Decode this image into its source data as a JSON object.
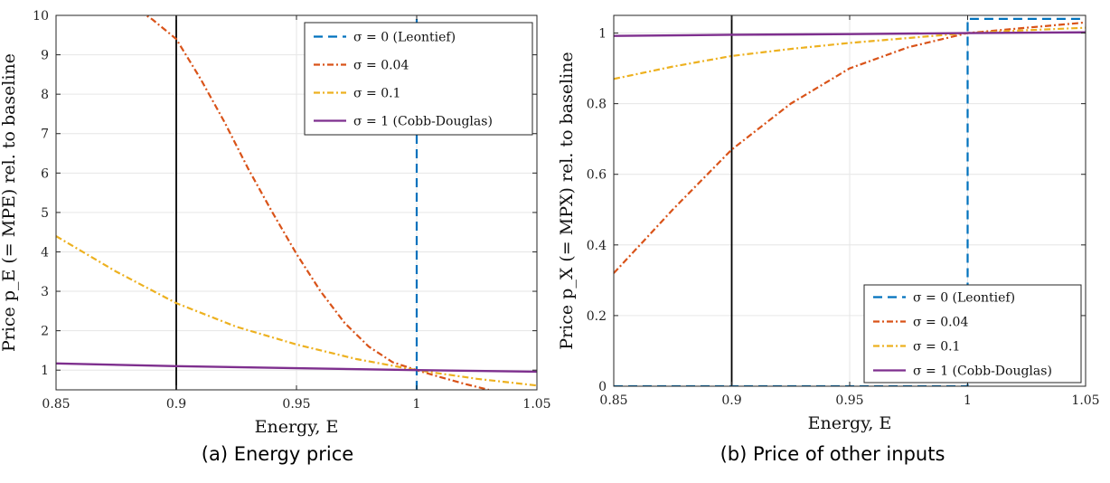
{
  "chart_data": [
    {
      "type": "line",
      "caption": "(a) Energy price",
      "xlabel": "Energy, E",
      "ylabel": "Price p_E (= MPE) rel. to baseline",
      "xlim": [
        0.85,
        1.05
      ],
      "ylim": [
        0.5,
        10
      ],
      "xticks": [
        "0.85",
        "0.9",
        "0.95",
        "1",
        "1.05"
      ],
      "yticks": [
        "1",
        "2",
        "3",
        "4",
        "5",
        "6",
        "7",
        "8",
        "9",
        "10"
      ],
      "grid": true,
      "legend_position": "top-right",
      "vertical_line": 0.9,
      "series": [
        {
          "name": "σ = 0 (Leontief)",
          "color": "#0072BD",
          "style": "dashed",
          "x": [
            1.0,
            1.0
          ],
          "y": [
            0.5,
            10
          ]
        },
        {
          "name": "σ = 0.04",
          "color": "#D95319",
          "style": "dashdot",
          "x": [
            0.88,
            0.89,
            0.9,
            0.91,
            0.92,
            0.93,
            0.94,
            0.95,
            0.96,
            0.97,
            0.98,
            0.99,
            1.0,
            1.01,
            1.02,
            1.03
          ],
          "y": [
            10.3,
            9.9,
            9.4,
            8.4,
            7.3,
            6.1,
            5.0,
            3.95,
            3.0,
            2.2,
            1.6,
            1.2,
            1.0,
            0.82,
            0.65,
            0.5
          ]
        },
        {
          "name": "σ = 0.1",
          "color": "#EDB120",
          "style": "dashdot",
          "x": [
            0.85,
            0.875,
            0.9,
            0.925,
            0.95,
            0.975,
            1.0,
            1.025,
            1.05
          ],
          "y": [
            4.4,
            3.5,
            2.7,
            2.1,
            1.65,
            1.28,
            1.0,
            0.78,
            0.61
          ]
        },
        {
          "name": "σ = 1 (Cobb-Douglas)",
          "color": "#7E2F8E",
          "style": "solid",
          "x": [
            0.85,
            0.9,
            0.95,
            1.0,
            1.05
          ],
          "y": [
            1.17,
            1.1,
            1.05,
            1.0,
            0.96
          ]
        }
      ]
    },
    {
      "type": "line",
      "caption": "(b) Price of other inputs",
      "xlabel": "Energy, E",
      "ylabel": "Price p_X (= MPX) rel. to baseline",
      "xlim": [
        0.85,
        1.05
      ],
      "ylim": [
        0,
        1.05
      ],
      "xticks": [
        "0.85",
        "0.9",
        "0.95",
        "1",
        "1.05"
      ],
      "yticks": [
        "0",
        "0.2",
        "0.4",
        "0.6",
        "0.8",
        "1"
      ],
      "grid": true,
      "legend_position": "bottom-right",
      "vertical_line": 0.9,
      "series": [
        {
          "name": "σ = 0 (Leontief)",
          "color": "#0072BD",
          "style": "dashed",
          "x": [
            0.85,
            1.0,
            1.0,
            1.05
          ],
          "y": [
            0,
            0,
            1.04,
            1.04
          ]
        },
        {
          "name": "σ = 0.04",
          "color": "#D95319",
          "style": "dashdot",
          "x": [
            0.85,
            0.875,
            0.9,
            0.925,
            0.95,
            0.975,
            1.0,
            1.025,
            1.05
          ],
          "y": [
            0.32,
            0.5,
            0.67,
            0.8,
            0.9,
            0.96,
            1.0,
            1.015,
            1.03
          ]
        },
        {
          "name": "σ = 0.1",
          "color": "#EDB120",
          "style": "dashdot",
          "x": [
            0.85,
            0.875,
            0.9,
            0.925,
            0.95,
            0.975,
            1.0,
            1.025,
            1.05
          ],
          "y": [
            0.87,
            0.905,
            0.935,
            0.955,
            0.972,
            0.986,
            1.0,
            1.008,
            1.015
          ]
        },
        {
          "name": "σ = 1 (Cobb-Douglas)",
          "color": "#7E2F8E",
          "style": "solid",
          "x": [
            0.85,
            0.9,
            0.95,
            1.0,
            1.05
          ],
          "y": [
            0.992,
            0.995,
            0.997,
            1.0,
            1.002
          ]
        }
      ]
    }
  ]
}
